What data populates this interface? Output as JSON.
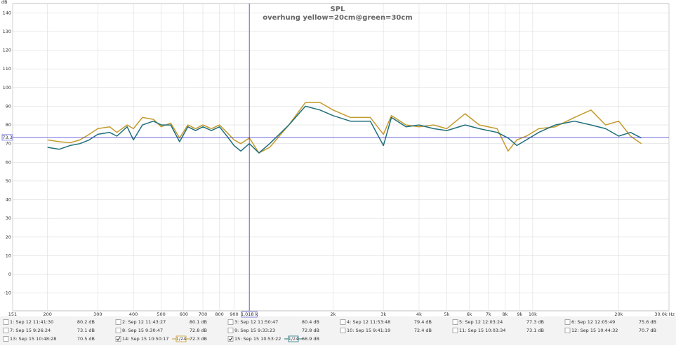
{
  "chart_data": {
    "type": "line",
    "title": "SPL",
    "subtitle": "overhung yellow=20cm@green=30cm",
    "y_label": "dB",
    "log_x": true,
    "grid": true,
    "xlim": [
      151,
      30000
    ],
    "ylim": [
      -19.5,
      145
    ],
    "xticks": [
      151,
      200,
      300,
      400,
      500,
      600,
      700,
      800,
      900,
      {
        "value": 2000,
        "label": "2k"
      },
      {
        "value": 3000,
        "label": "3k"
      },
      {
        "value": 4000,
        "label": "4k"
      },
      {
        "value": 5000,
        "label": "5k"
      },
      {
        "value": 6000,
        "label": "6k"
      },
      {
        "value": 7000,
        "label": "7k"
      },
      {
        "value": 8000,
        "label": "8k"
      },
      {
        "value": 9000,
        "label": "9k"
      },
      {
        "value": 10000,
        "label": "10k"
      },
      {
        "value": 20000,
        "label": "20k"
      },
      {
        "value": 30000,
        "label": "30.0k Hz"
      }
    ],
    "yticks": [
      -10,
      0,
      10,
      20,
      30,
      40,
      50,
      60,
      70,
      80,
      90,
      100,
      110,
      120,
      130,
      140
    ],
    "cursor": {
      "x": 1018,
      "x_label": "1.018 k",
      "y": 73.3,
      "color": "#3b3bd6"
    },
    "x": [
      200,
      220,
      240,
      260,
      280,
      300,
      330,
      350,
      380,
      400,
      430,
      470,
      500,
      540,
      580,
      620,
      660,
      700,
      750,
      800,
      850,
      900,
      950,
      1018,
      1100,
      1200,
      1400,
      1600,
      1800,
      2000,
      2300,
      2700,
      3000,
      3200,
      3600,
      4000,
      4500,
      5000,
      5800,
      6500,
      7500,
      8200,
      8800,
      9500,
      10500,
      12000,
      14000,
      16000,
      18000,
      20000,
      22000,
      24000
    ],
    "series": [
      {
        "color": "#c49a2c",
        "values": [
          72,
          71,
          70.5,
          72,
          75,
          78,
          79,
          76,
          80,
          78,
          84,
          83,
          79,
          81,
          73,
          80,
          78,
          80,
          78,
          80,
          76,
          72,
          70,
          73,
          65,
          68,
          80,
          92,
          92,
          88,
          84,
          84,
          75,
          85,
          80,
          79,
          80,
          78,
          86,
          80,
          78,
          66,
          72,
          74,
          78,
          79,
          84,
          88,
          80,
          82,
          74,
          70
        ]
      },
      {
        "color": "#1f6e7a",
        "values": [
          68,
          67,
          69,
          70,
          72,
          75,
          76,
          74,
          79,
          72,
          80,
          82,
          80,
          80,
          71,
          79,
          77,
          79,
          77,
          79,
          74,
          69,
          66,
          70,
          65,
          70,
          80,
          90,
          88,
          85,
          82,
          82,
          69,
          84,
          79,
          80,
          78,
          77,
          80,
          78,
          76,
          73,
          69,
          72,
          76,
          80,
          82,
          80,
          78,
          74,
          76,
          73
        ]
      }
    ]
  },
  "measurements": [
    {
      "name": "1: Sep 12 11:41:30",
      "level": "80.2 dB",
      "color": "#c0392b",
      "checked": false
    },
    {
      "name": "2: Sep 12 11:43:27",
      "level": "80.1 dB",
      "color": "#2e8b2e",
      "checked": false
    },
    {
      "name": "3: Sep 12 11:50:47",
      "level": "80.4 dB",
      "color": "#4b4bb8",
      "checked": false
    },
    {
      "name": "4: Sep 12 11:53:48",
      "level": "79.4 dB",
      "color": "#8e44ad",
      "checked": false
    },
    {
      "name": "5: Sep 12 12:03:24",
      "level": "77.3 dB",
      "color": "#1f8a8a",
      "checked": false
    },
    {
      "name": "6: Sep 12 12:05:49",
      "level": "75.6 dB",
      "color": "#c48a1c",
      "checked": false
    },
    {
      "name": "7: Sep 15 9:26:24",
      "level": "73.1 dB",
      "color": "#2a9d6a",
      "checked": false
    },
    {
      "name": "8: Sep 15 9:30:47",
      "level": "72.8 dB",
      "color": "#b03aa8",
      "checked": false
    },
    {
      "name": "9: Sep 15 9:33:23",
      "level": "72.8 dB",
      "color": "#7a3aa8",
      "checked": false
    },
    {
      "name": "10: Sep 15 9:41:19",
      "level": "72.4 dB",
      "color": "#2a9dc0",
      "checked": false
    },
    {
      "name": "11: Sep 15 10:03:34",
      "level": "73.1 dB",
      "color": "#a02020",
      "checked": false
    },
    {
      "name": "12: Sep 15 10:44:32",
      "level": "70.7 dB",
      "color": "#1a2a5a",
      "checked": false
    },
    {
      "name": "13: Sep 15 10:48:28",
      "level": "70.5 dB",
      "color": "#1f6e7a",
      "checked": false
    },
    {
      "name": "14: Sep 15 10:50:17",
      "level": "72.3 dB",
      "color": "#c49a2c",
      "checked": true,
      "smoothing": "1/24"
    },
    {
      "name": "15: Sep 15 10:53:22",
      "level": "66.9 dB",
      "color": "#1f6e7a",
      "checked": true,
      "smoothing": "1/24"
    }
  ]
}
